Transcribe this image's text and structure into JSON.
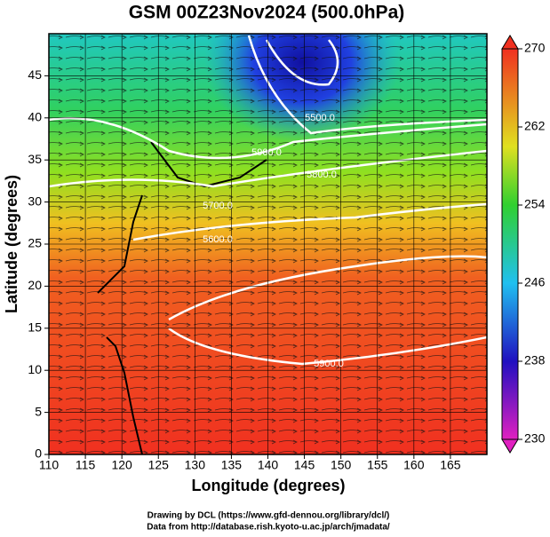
{
  "chart_data": {
    "type": "contour-map",
    "title": "GSM 00Z23Nov2024 (500.0hPa)",
    "xlabel": "Longitude (degrees)",
    "ylabel": "Latitude  (degrees)",
    "xlim": [
      110,
      170
    ],
    "ylim": [
      0,
      50
    ],
    "xticks": [
      110,
      115,
      120,
      125,
      130,
      135,
      140,
      145,
      150,
      155,
      160,
      165
    ],
    "yticks": [
      0,
      5,
      10,
      15,
      20,
      25,
      30,
      35,
      40,
      45
    ],
    "grid": true,
    "colorbar_lim": [
      230,
      270
    ],
    "colorbar_ticks": [
      230,
      238,
      246,
      254,
      262,
      270
    ],
    "contour_labels": [
      {
        "value": 5500,
        "label": "5500.0"
      },
      {
        "value": 5600,
        "label": "5600.0"
      },
      {
        "value": 5700,
        "label": "5700.0"
      },
      {
        "value": 5800,
        "label": "5800.0"
      },
      {
        "value": 5900,
        "label": "5900.0"
      },
      {
        "value": 5900,
        "label": "5900.0"
      }
    ],
    "credits": [
      "Drawing by DCL (https://www.gfd-dennou.org/library/dcl/)",
      "Data from http://database.rish.kyoto-u.ac.jp/arch/jmadata/"
    ]
  }
}
